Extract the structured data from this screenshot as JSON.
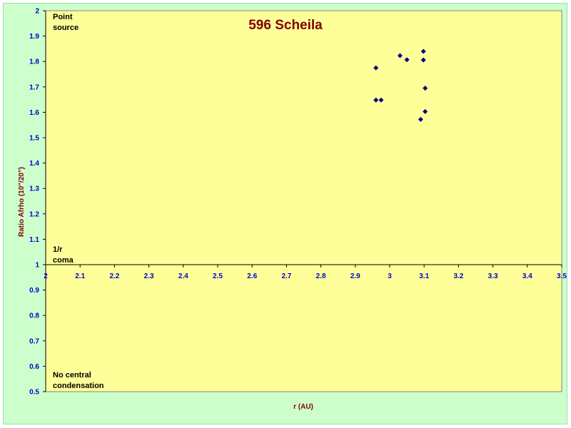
{
  "chart_data": {
    "type": "scatter",
    "title": "596 Scheila",
    "xlabel": "r (AU)",
    "ylabel": "Ratio Afrho (10\"/20\")",
    "xlim": [
      2,
      3.5
    ],
    "ylim": [
      0.5,
      2
    ],
    "x_axis_crosses_y_at": 1,
    "xticks": [
      2,
      2.1,
      2.2,
      2.3,
      2.4,
      2.5,
      2.6,
      2.7,
      2.8,
      2.9,
      3,
      3.1,
      3.2,
      3.3,
      3.4,
      3.5
    ],
    "xtick_labels": [
      "2",
      "2.1",
      "2.2",
      "2.3",
      "2.4",
      "2.5",
      "2.6",
      "2.7",
      "2.8",
      "2.9",
      "3",
      "3.1",
      "3.2",
      "3.3",
      "3.4",
      "3.5"
    ],
    "yticks": [
      0.5,
      0.6,
      0.7,
      0.8,
      0.9,
      1,
      1.1,
      1.2,
      1.3,
      1.4,
      1.5,
      1.6,
      1.7,
      1.8,
      1.9,
      2
    ],
    "ytick_labels": [
      "0.5",
      "0.6",
      "0.7",
      "0.8",
      "0.9",
      "1",
      "1.1",
      "1.2",
      "1.3",
      "1.4",
      "1.5",
      "1.6",
      "1.7",
      "1.8",
      "1.9",
      "2"
    ],
    "grid": false,
    "marker": "diamond",
    "marker_color": "#000080",
    "plot_background": "#ffff99",
    "series": [
      {
        "points": [
          {
            "x": 2.96,
            "y": 1.775
          },
          {
            "x": 2.96,
            "y": 1.648
          },
          {
            "x": 2.975,
            "y": 1.648
          },
          {
            "x": 3.03,
            "y": 1.823
          },
          {
            "x": 3.05,
            "y": 1.807
          },
          {
            "x": 3.09,
            "y": 1.572
          },
          {
            "x": 3.098,
            "y": 1.84
          },
          {
            "x": 3.098,
            "y": 1.806
          },
          {
            "x": 3.103,
            "y": 1.695
          },
          {
            "x": 3.103,
            "y": 1.603
          }
        ]
      }
    ],
    "annotations": [
      {
        "lines": [
          "Point",
          "source"
        ],
        "at_y": 2
      },
      {
        "lines": [
          "1/r",
          "coma"
        ],
        "at_y": 1
      },
      {
        "lines": [
          "No central",
          "condensation"
        ],
        "at_y": 0.5
      }
    ]
  }
}
